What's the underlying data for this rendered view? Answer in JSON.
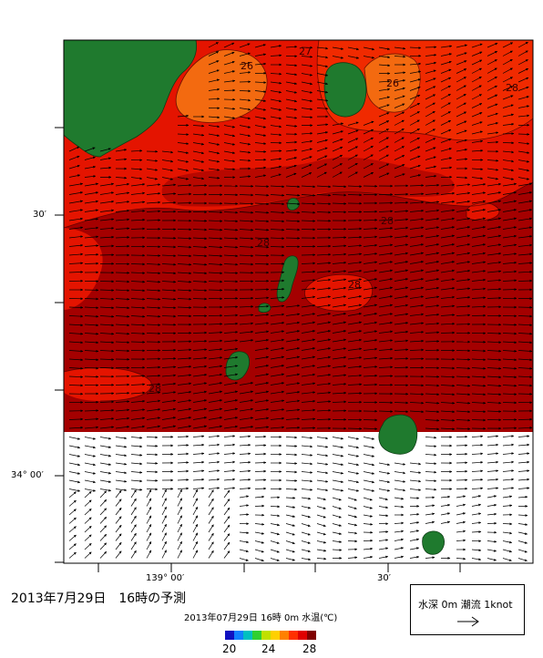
{
  "title": "2013年7月29日　16時の予測",
  "caption": "2013年07月29日 16時 0m 水温(℃)",
  "legend": {
    "label": "水深 0m 潮流 1knot",
    "arrow_icon": "right-arrow-icon"
  },
  "colorbar": {
    "ticks": [
      "20",
      "24",
      "28"
    ],
    "range": [
      20,
      28
    ],
    "colors": [
      "#1010c0",
      "#1080ff",
      "#00c0c0",
      "#30d030",
      "#c0e000",
      "#ffd000",
      "#ff8000",
      "#ff3000",
      "#e00000",
      "#800000"
    ]
  },
  "axis_labels": {
    "lat_30": "30′",
    "lat_34_00": "34° 00′",
    "lon_139_00": "139° 00′",
    "lon_30": "30′"
  },
  "contour_labels": [
    "26",
    "26",
    "27",
    "28",
    "28",
    "28",
    "28",
    "28"
  ],
  "colors": {
    "land": "#1f7a2e",
    "sst_28": "#a00000",
    "sst_27": "#e41400",
    "sst_26": "#f36a10",
    "no_data": "#ffffff"
  }
}
